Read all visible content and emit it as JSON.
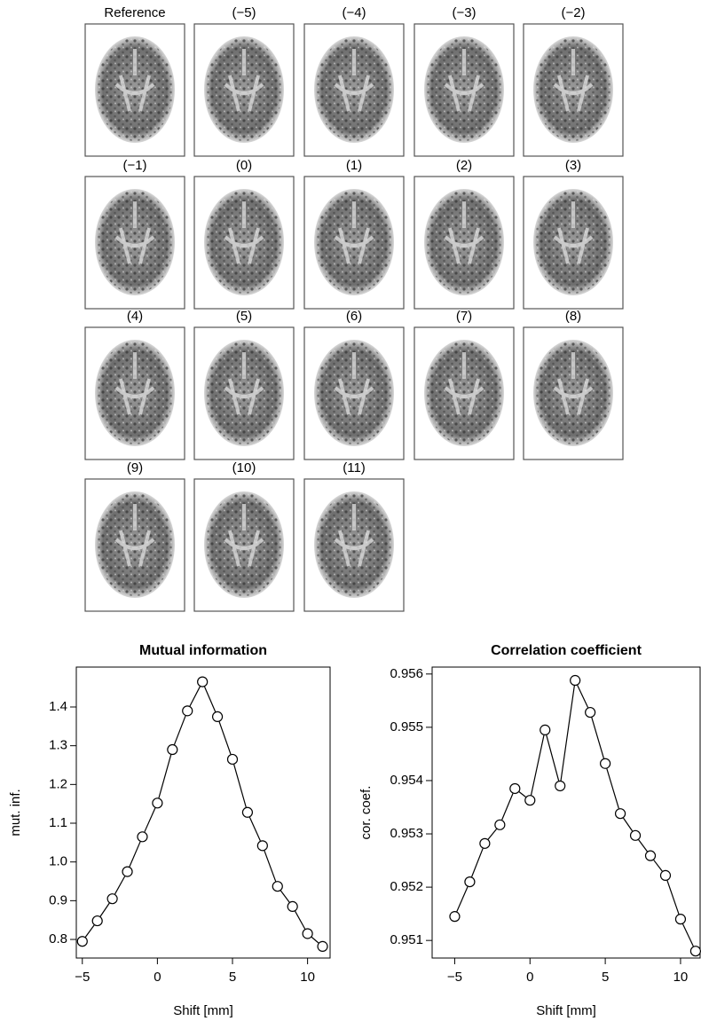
{
  "image_labels": [
    "Reference",
    "(−5)",
    "(−4)",
    "(−3)",
    "(−2)",
    "(−1)",
    "(0)",
    "(1)",
    "(2)",
    "(3)",
    "(4)",
    "(5)",
    "(6)",
    "(7)",
    "(8)",
    "(9)",
    "(10)",
    "(11)"
  ],
  "chart_data": [
    {
      "type": "line",
      "title": "Mutual information",
      "x_label": "Shift [mm]",
      "y_label": "mut. inf.",
      "color": "#000000",
      "x": [
        -5,
        -4,
        -3,
        -2,
        -1,
        0,
        1,
        2,
        3,
        4,
        5,
        6,
        7,
        8,
        9,
        10,
        11
      ],
      "values": [
        0.795,
        0.848,
        0.905,
        0.975,
        1.065,
        1.152,
        1.29,
        1.39,
        1.465,
        1.375,
        1.265,
        1.128,
        1.042,
        0.937,
        0.885,
        0.815,
        0.782
      ],
      "xlim": [
        -5.4,
        11.5
      ],
      "ylim": [
        0.752,
        1.503
      ],
      "xticks": [
        {
          "value": -5,
          "label": "−5"
        },
        0,
        5,
        10
      ],
      "yticks": [
        0.8,
        0.9,
        {
          "value": 1,
          "label": "1.0"
        },
        1.1,
        1.2,
        1.3,
        1.4
      ]
    },
    {
      "type": "line",
      "title": "Correlation coefficient",
      "x_label": "Shift [mm]",
      "y_label": "cor. coef.",
      "color": "#000000",
      "x": [
        -5,
        -4,
        -3,
        -2,
        -1,
        0,
        1,
        2,
        3,
        4,
        5,
        6,
        7,
        8,
        9,
        10,
        11
      ],
      "values": [
        0.95145,
        0.9521,
        0.95282,
        0.95317,
        0.95385,
        0.95363,
        0.95495,
        0.9539,
        0.95588,
        0.95528,
        0.95432,
        0.95338,
        0.95297,
        0.95259,
        0.95222,
        0.9514,
        0.9508
      ],
      "xlim": [
        -6.5,
        11.3
      ],
      "ylim": [
        0.95067,
        0.95613
      ],
      "xticks": [
        {
          "value": -5,
          "label": "−5"
        },
        0,
        5,
        10
      ],
      "yticks": [
        0.951,
        0.952,
        0.953,
        0.954,
        0.955,
        0.956
      ]
    }
  ]
}
